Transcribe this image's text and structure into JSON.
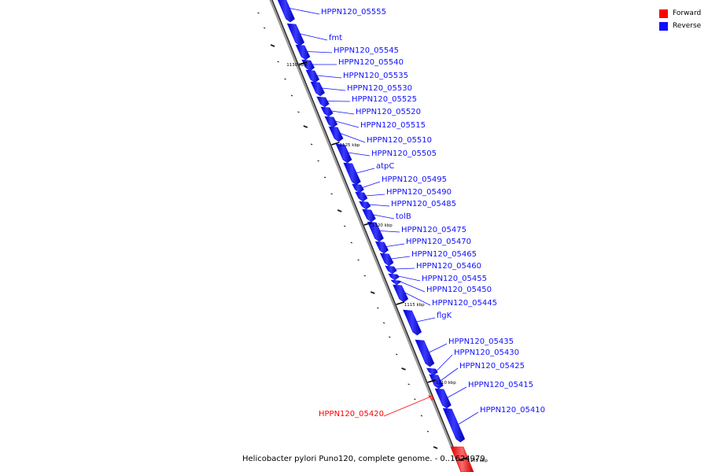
{
  "legend": {
    "forward_label": "Forward",
    "reverse_label": "Reverse",
    "forward_color": "#ff0000",
    "reverse_color": "#1010ff"
  },
  "caption": "Helicobacter pylori Puno120, complete genome. - 0..1624979",
  "ticks": [
    {
      "label": "1130 kbp"
    },
    {
      "label": "1125 kbp"
    },
    {
      "label": "1120 kbp"
    },
    {
      "label": "1115 kbp"
    },
    {
      "label": "1110 kbp"
    },
    {
      "label": "1105 kbp"
    }
  ],
  "genes": [
    {
      "label": "HPPN120_05555",
      "strand": "reverse"
    },
    {
      "label": "fmt",
      "strand": "reverse"
    },
    {
      "label": "HPPN120_05545",
      "strand": "reverse"
    },
    {
      "label": "HPPN120_05540",
      "strand": "reverse"
    },
    {
      "label": "HPPN120_05535",
      "strand": "reverse"
    },
    {
      "label": "HPPN120_05530",
      "strand": "reverse"
    },
    {
      "label": "HPPN120_05525",
      "strand": "reverse"
    },
    {
      "label": "HPPN120_05520",
      "strand": "reverse"
    },
    {
      "label": "HPPN120_05515",
      "strand": "reverse"
    },
    {
      "label": "HPPN120_05510",
      "strand": "reverse"
    },
    {
      "label": "HPPN120_05505",
      "strand": "reverse"
    },
    {
      "label": "atpC",
      "strand": "reverse"
    },
    {
      "label": "HPPN120_05495",
      "strand": "reverse"
    },
    {
      "label": "HPPN120_05490",
      "strand": "reverse"
    },
    {
      "label": "HPPN120_05485",
      "strand": "reverse"
    },
    {
      "label": "tolB",
      "strand": "reverse"
    },
    {
      "label": "HPPN120_05475",
      "strand": "reverse"
    },
    {
      "label": "HPPN120_05470",
      "strand": "reverse"
    },
    {
      "label": "HPPN120_05465",
      "strand": "reverse"
    },
    {
      "label": "HPPN120_05460",
      "strand": "reverse"
    },
    {
      "label": "HPPN120_05455",
      "strand": "reverse"
    },
    {
      "label": "HPPN120_05450",
      "strand": "reverse"
    },
    {
      "label": "HPPN120_05445",
      "strand": "reverse"
    },
    {
      "label": "flgK",
      "strand": "reverse"
    },
    {
      "label": "HPPN120_05435",
      "strand": "reverse"
    },
    {
      "label": "HPPN120_05430",
      "strand": "reverse"
    },
    {
      "label": "HPPN120_05425",
      "strand": "reverse"
    },
    {
      "label": "HPPN120_05415",
      "strand": "reverse"
    },
    {
      "label": "HPPN120_05410",
      "strand": "reverse"
    },
    {
      "label": "HPPN120_05420",
      "strand": "forward"
    }
  ]
}
